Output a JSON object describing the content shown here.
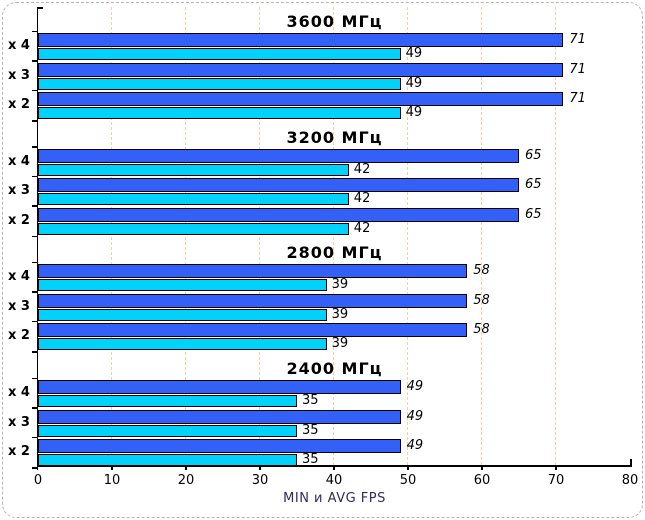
{
  "chart_data": {
    "type": "bar",
    "orientation": "horizontal",
    "xlabel": "MIN и AVG FPS",
    "xlim": [
      0,
      80
    ],
    "xticks": [
      0,
      10,
      20,
      30,
      40,
      50,
      60,
      70,
      80
    ],
    "gridlines": [
      10,
      20,
      30,
      40,
      50,
      60,
      70
    ],
    "series_names": [
      "AVG FPS",
      "MIN FPS"
    ],
    "groups": [
      {
        "title": "3600 МГц",
        "rows": [
          {
            "label": "x 4",
            "avg": 71,
            "min": 49
          },
          {
            "label": "x 3",
            "avg": 71,
            "min": 49
          },
          {
            "label": "x 2",
            "avg": 71,
            "min": 49
          }
        ]
      },
      {
        "title": "3200 МГц",
        "rows": [
          {
            "label": "x 4",
            "avg": 65,
            "min": 42
          },
          {
            "label": "x 3",
            "avg": 65,
            "min": 42
          },
          {
            "label": "x 2",
            "avg": 65,
            "min": 42
          }
        ]
      },
      {
        "title": "2800 МГц",
        "rows": [
          {
            "label": "x 4",
            "avg": 58,
            "min": 39
          },
          {
            "label": "x 3",
            "avg": 58,
            "min": 39
          },
          {
            "label": "x 2",
            "avg": 58,
            "min": 39
          }
        ]
      },
      {
        "title": "2400 МГц",
        "rows": [
          {
            "label": "x 4",
            "avg": 49,
            "min": 35
          },
          {
            "label": "x 3",
            "avg": 49,
            "min": 35
          },
          {
            "label": "x 2",
            "avg": 49,
            "min": 35
          }
        ]
      }
    ],
    "colors": {
      "avg": "#3360f7",
      "min": "#00d2fb",
      "grid": "#ffcc99",
      "axis": "#000000",
      "frame": "#b5b5b5",
      "text": "#000000",
      "xlabel": "#2e2e5e"
    }
  }
}
